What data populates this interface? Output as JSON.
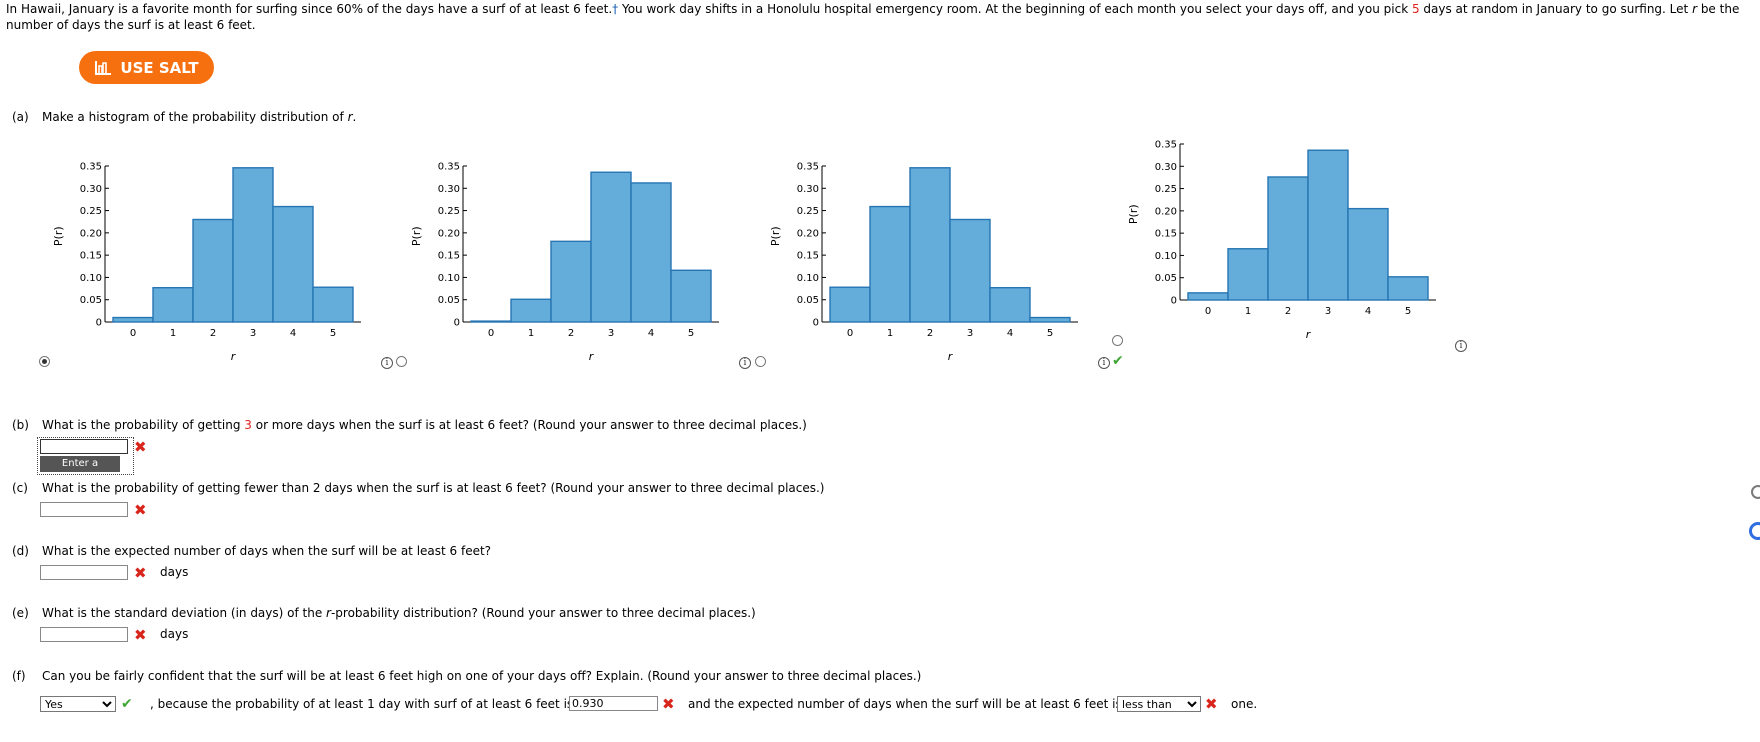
{
  "intro": {
    "p1": "In Hawaii, January is a favorite month for surfing since 60% of the days have a surf of at least 6 feet.",
    "dagger": "†",
    "p2": " You work day shifts in a Honolulu hospital emergency room. At the beginning of each month you select your days off, and you pick ",
    "days_count": "5",
    "p3": " days at random in January to go surfing. Let ",
    "var": "r",
    "p4": " be the",
    "line2": "number of days the surf is at least 6 feet."
  },
  "salt_button": {
    "label": "USE SALT",
    "icon": "salt-chart-icon",
    "color": "#f7700f"
  },
  "part_a": {
    "label": "(a)",
    "text_before": "Make a histogram of the probability distribution of ",
    "var": "r",
    "text_after": "."
  },
  "chart_data": [
    {
      "type": "bar",
      "categories": [
        "0",
        "1",
        "2",
        "3",
        "4",
        "5"
      ],
      "values": [
        0.01,
        0.077,
        0.23,
        0.346,
        0.259,
        0.078
      ],
      "ylim": [
        0,
        0.35
      ],
      "yticks": [
        "0",
        "0.05",
        "0.10",
        "0.15",
        "0.20",
        "0.25",
        "0.30",
        "0.35"
      ],
      "xlabel": "r",
      "ylabel": "P(r)",
      "selected": true,
      "feedback": ""
    },
    {
      "type": "bar",
      "categories": [
        "0",
        "1",
        "2",
        "3",
        "4",
        "5"
      ],
      "values": [
        0.002,
        0.051,
        0.181,
        0.336,
        0.312,
        0.116
      ],
      "ylim": [
        0,
        0.35
      ],
      "yticks": [
        "0",
        "0.05",
        "0.10",
        "0.15",
        "0.20",
        "0.25",
        "0.30",
        "0.35"
      ],
      "xlabel": "r",
      "ylabel": "P(r)",
      "selected": false,
      "feedback": ""
    },
    {
      "type": "bar",
      "categories": [
        "0",
        "1",
        "2",
        "3",
        "4",
        "5"
      ],
      "values": [
        0.078,
        0.259,
        0.346,
        0.23,
        0.077,
        0.01
      ],
      "ylim": [
        0,
        0.35
      ],
      "yticks": [
        "0",
        "0.05",
        "0.10",
        "0.15",
        "0.20",
        "0.25",
        "0.30",
        "0.35"
      ],
      "xlabel": "r",
      "ylabel": "P(r)",
      "selected": false,
      "feedback": "correct"
    },
    {
      "type": "bar",
      "categories": [
        "0",
        "1",
        "2",
        "3",
        "4",
        "5"
      ],
      "values": [
        0.016,
        0.115,
        0.276,
        0.336,
        0.205,
        0.052
      ],
      "ylim": [
        0,
        0.35
      ],
      "yticks": [
        "0",
        "0.05",
        "0.10",
        "0.15",
        "0.20",
        "0.25",
        "0.30",
        "0.35"
      ],
      "xlabel": "r",
      "ylabel": "P(r)",
      "selected": false,
      "feedback": ""
    }
  ],
  "bar_color": "#64acd9",
  "bar_stroke": "#2776b4",
  "part_b": {
    "label": "(b)",
    "text_before": "What is the probability of getting ",
    "num": "3",
    "text_after": " or more days when the surf is at least 6 feet? (Round your answer to three decimal places.)",
    "value": "",
    "tooltip": "Enter a number."
  },
  "part_c": {
    "label": "(c)",
    "text": "What is the probability of getting fewer than 2 days when the surf is at least 6 feet? (Round your answer to three decimal places.)",
    "value": ""
  },
  "part_d": {
    "label": "(d)",
    "text": "What is the expected number of days when the surf will be at least 6 feet?",
    "value": "",
    "unit": "days"
  },
  "part_e": {
    "label": "(e)",
    "text_before": "What is the standard deviation (in days) of the ",
    "var": "r",
    "text_after": "-probability distribution? (Round your answer to three decimal places.)",
    "value": "",
    "unit": "days"
  },
  "part_f": {
    "label": "(f)",
    "text": "Can you be fairly confident that the surf will be at least 6 feet high on one of your days off? Explain. (Round your answer to three decimal places.)",
    "select1": "Yes",
    "mid_text": ", because the probability of at least 1 day with surf of at least 6 feet is",
    "prob_value": "0.930",
    "after_text": "and the expected number of days when the surf will be at least 6 feet is",
    "select2": "less than",
    "end_text": "one."
  },
  "icons": {
    "info": "i",
    "x": "✖",
    "check": "✔"
  }
}
